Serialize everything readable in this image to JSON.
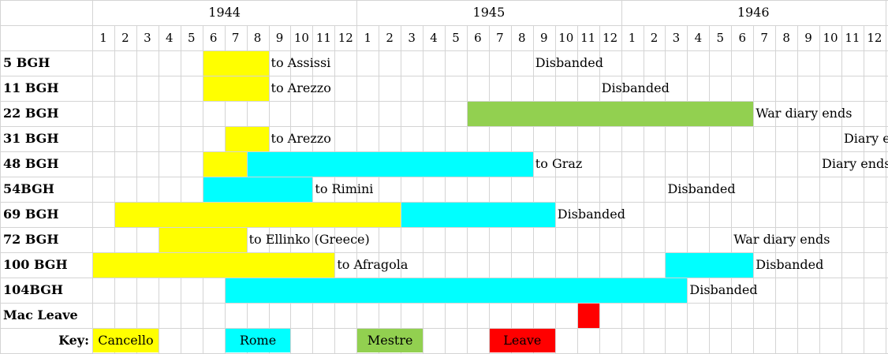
{
  "chart_data": {
    "type": "table",
    "years": [
      "1944",
      "1945",
      "1946"
    ],
    "months": [
      1,
      2,
      3,
      4,
      5,
      6,
      7,
      8,
      9,
      10,
      11,
      12
    ],
    "colors": {
      "Cancello": "#ffff00",
      "Rome": "#00ffff",
      "Mestre": "#92d050",
      "Leave": "#ff0000"
    },
    "rows": [
      {
        "label": "5 BGH",
        "bars": [
          {
            "location": "Cancello",
            "start": 6,
            "end": 8
          }
        ],
        "notes": [
          {
            "text": "to Assissi",
            "start": 9
          },
          {
            "text": "Disbanded",
            "start": 21
          }
        ]
      },
      {
        "label": "11 BGH",
        "bars": [
          {
            "location": "Cancello",
            "start": 6,
            "end": 8
          }
        ],
        "notes": [
          {
            "text": "to Arezzo",
            "start": 9
          },
          {
            "text": "Disbanded",
            "start": 24
          }
        ]
      },
      {
        "label": "22 BGH",
        "bars": [
          {
            "location": "Mestre",
            "start": 18,
            "end": 30
          }
        ],
        "notes": [
          {
            "text": "War diary ends",
            "start": 31
          }
        ]
      },
      {
        "label": "31 BGH",
        "bars": [
          {
            "location": "Cancello",
            "start": 7,
            "end": 8
          }
        ],
        "notes": [
          {
            "text": "to Arezzo",
            "start": 9
          },
          {
            "text": "Diary end",
            "start": 35
          }
        ]
      },
      {
        "label": "48 BGH",
        "bars": [
          {
            "location": "Cancello",
            "start": 6,
            "end": 7
          },
          {
            "location": "Rome",
            "start": 8,
            "end": 20
          }
        ],
        "notes": [
          {
            "text": "to Graz",
            "start": 21
          },
          {
            "text": "Diary ends",
            "start": 34
          }
        ]
      },
      {
        "label": "54BGH",
        "bars": [
          {
            "location": "Rome",
            "start": 6,
            "end": 10
          }
        ],
        "notes": [
          {
            "text": "to Rimini",
            "start": 11
          },
          {
            "text": "Disbanded",
            "start": 27
          }
        ]
      },
      {
        "label": "69 BGH",
        "bars": [
          {
            "location": "Cancello",
            "start": 2,
            "end": 14
          },
          {
            "location": "Rome",
            "start": 15,
            "end": 21
          }
        ],
        "notes": [
          {
            "text": "Disbanded",
            "start": 22
          }
        ]
      },
      {
        "label": "72 BGH",
        "bars": [
          {
            "location": "Cancello",
            "start": 4,
            "end": 7
          }
        ],
        "notes": [
          {
            "text": "to Ellinko (Greece)",
            "start": 8
          },
          {
            "text": "War diary ends",
            "start": 30
          }
        ]
      },
      {
        "label": "100 BGH",
        "bars": [
          {
            "location": "Cancello",
            "start": 1,
            "end": 11
          },
          {
            "location": "Rome",
            "start": 27,
            "end": 30
          }
        ],
        "notes": [
          {
            "text": "to Afragola",
            "start": 12
          },
          {
            "text": "Disbanded",
            "start": 31
          }
        ]
      },
      {
        "label": "104BGH",
        "bars": [
          {
            "location": "Rome",
            "start": 7,
            "end": 27
          }
        ],
        "notes": [
          {
            "text": "Disbanded",
            "start": 28
          }
        ]
      },
      {
        "label": "Mac Leave",
        "bars": [
          {
            "location": "Leave",
            "start": 23,
            "end": 23
          }
        ],
        "notes": []
      }
    ],
    "key": {
      "label": "Key:",
      "items": [
        {
          "name": "Cancello",
          "start": 1,
          "end": 3
        },
        {
          "name": "Rome",
          "start": 7,
          "end": 9
        },
        {
          "name": "Mestre",
          "start": 13,
          "end": 15
        },
        {
          "name": "Leave",
          "start": 19,
          "end": 21
        }
      ]
    }
  }
}
